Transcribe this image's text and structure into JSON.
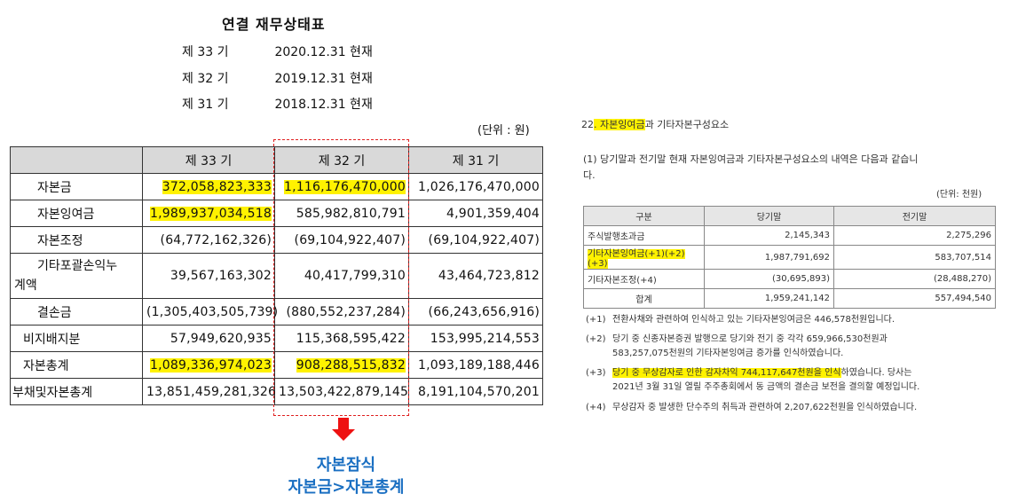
{
  "title": "연결 재무상태표",
  "periods": [
    {
      "label": "제 33 기",
      "date": "2020.12.31 현재"
    },
    {
      "label": "제 32 기",
      "date": "2019.12.31 현재"
    },
    {
      "label": "제 31 기",
      "date": "2018.12.31 현재"
    }
  ],
  "unit_left": "(단위 : 원)",
  "table": {
    "headers": [
      "",
      "제 33 기",
      "제 32 기",
      "제 31 기"
    ],
    "rows": [
      {
        "label": "자본금",
        "v33": "372,058,823,333",
        "v32": "1,116,176,470,000",
        "v31": "1,026,176,470,000"
      },
      {
        "label": "자본잉여금",
        "v33": "1,989,937,034,518",
        "v32": "585,982,810,791",
        "v31": "4,901,359,404"
      },
      {
        "label": "자본조정",
        "v33": "(64,772,162,326)",
        "v32": "(69,104,922,407)",
        "v31": "(69,104,922,407)"
      },
      {
        "label": "기타포괄손익누",
        "label2": "계액",
        "v33": "39,567,163,302",
        "v32": "40,417,799,310",
        "v31": "43,464,723,812"
      },
      {
        "label": "결손금",
        "v33": "(1,305,403,505,739)",
        "v32": "(880,552,237,284)",
        "v31": "(66,243,656,916)"
      },
      {
        "label": "비지배지분",
        "v33": "57,949,620,935",
        "v32": "115,368,595,422",
        "v31": "153,995,214,553"
      },
      {
        "label": "자본총계",
        "v33": "1,089,336,974,023",
        "v32": "908,288,515,832",
        "v31": "1,093,189,188,446"
      },
      {
        "label": "부채및자본총계",
        "v33": "13,851,459,281,326",
        "v32": "13,503,422,879,145",
        "v31": "8,191,104,570,201"
      }
    ]
  },
  "annotation": {
    "line1": "자본잠식",
    "line2": "자본금>자본총계"
  },
  "right": {
    "section_num": "22",
    "section_hl": ". 자본잉여금",
    "section_rest": "과 기타자본구성요소",
    "para_line1": "(1) 당기말과 전기말 현재 자본잉여금과 기타자본구성요소의 내역은 다음과 같습니",
    "para_line2": "다.",
    "unit": "(단위: 천원)",
    "headers": [
      "구분",
      "당기말",
      "전기말"
    ],
    "rows": [
      {
        "label": "주식발행초과금",
        "cur": "2,145,343",
        "prev": "2,275,296"
      },
      {
        "label": "기타자본잉여금(+1)(+2)(+3)",
        "cur": "1,987,791,692",
        "prev": "583,707,514"
      },
      {
        "label": "기타자본조정(+4)",
        "cur": "(30,695,893)",
        "prev": "(28,488,270)"
      },
      {
        "label": "합계",
        "cur": "1,959,241,142",
        "prev": "557,494,540"
      }
    ],
    "footnotes": {
      "f1_mark": "(+1)",
      "f1": "전환사채와 관련하여 인식하고 있는 기타자본잉여금은 446,578천원입니다.",
      "f2_mark": "(+2)",
      "f2a": "당기 중 신종자본증권 발행으로 당기와 전기 중 각각 659,966,530천원과",
      "f2b": "583,257,075천원의 기타자본잉여금 증가를 인식하였습니다.",
      "f3_mark": "(+3)",
      "f3_hl": "당기 중 무상감자로 인한 감자차익 744,117,647천원을 인식",
      "f3_rest": "하였습니다. 당사는",
      "f3b": "2021년 3월 31일 열릴 주주총회에서 동 금액의 결손금 보전을 결의할 예정입니다.",
      "f4_mark": "(+4)",
      "f4": "무상감자 중 발생한 단수주의 취득과 관련하여 2,207,622천원을 인식하였습니다."
    }
  },
  "colors": {
    "highlight": "#fff200",
    "dash_border": "#e02020",
    "arrow": "#e11111",
    "annotation_text": "#1a6fc2"
  }
}
